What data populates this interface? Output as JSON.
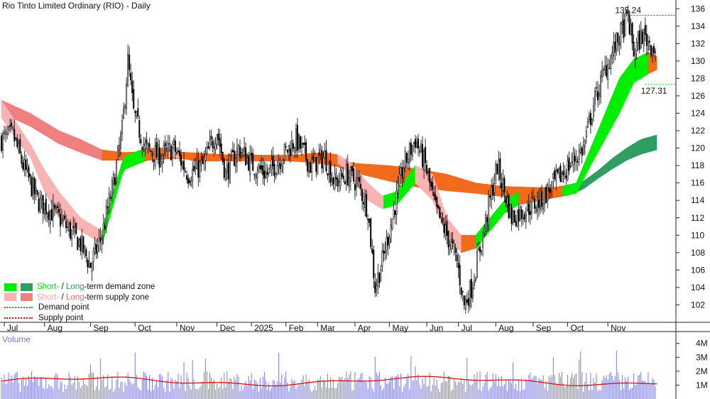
{
  "title": "Rio Tinto Limited Ordinary (RIO) - Daily",
  "volume_title": "Volume",
  "colors": {
    "short_demand": "#00ee00",
    "long_demand": "#2f9e62",
    "short_supply": "#f8b4b4",
    "long_supply": "#f08080",
    "orange_zone": "#f26b1d",
    "volume_bar": "#7b7bd6",
    "volume_ma": "#d81010",
    "demand_point": "#00cc00",
    "supply_point": "#d81010"
  },
  "legend": {
    "row1_pre": "Short-",
    "row1_sep": " / ",
    "row1_long": "Long",
    "row1_post": "-term demand zone",
    "row2_pre": "Short-",
    "row2_sep": " / ",
    "row2_long": "Long",
    "row2_post": "-term supply zone",
    "row3": "Demand point",
    "row4": "Supply point"
  },
  "chart_data": {
    "type": "candlestick",
    "price_axis": {
      "min": 100,
      "max": 137,
      "ticks": [
        102,
        104,
        106,
        108,
        110,
        112,
        114,
        116,
        118,
        120,
        122,
        124,
        126,
        128,
        130,
        132,
        134,
        136
      ]
    },
    "volume_axis": {
      "ticks": [
        "4M",
        "3M",
        "2M",
        "1M"
      ],
      "values": [
        4,
        3,
        2,
        1
      ],
      "max": 4.6
    },
    "months": [
      "Jul",
      "Aug",
      "Sep",
      "Oct",
      "Nov",
      "Dec",
      "2025",
      "Feb",
      "Mar",
      "Apr",
      "May",
      "Jun",
      "Jul",
      "Aug",
      "Sep",
      "Oct",
      "Nov"
    ],
    "annotations": {
      "supply_point": {
        "label": "135.24",
        "value": 135.24
      },
      "demand_point": {
        "label": "127.31",
        "value": 127.31
      }
    },
    "close_keypoints": [
      [
        0,
        121.0
      ],
      [
        8,
        121.5
      ],
      [
        15,
        118
      ],
      [
        25,
        114
      ],
      [
        40,
        112
      ],
      [
        55,
        109
      ],
      [
        62,
        106.5
      ],
      [
        70,
        110
      ],
      [
        78,
        116
      ],
      [
        84,
        122
      ],
      [
        88,
        130
      ],
      [
        92,
        124
      ],
      [
        100,
        120
      ],
      [
        110,
        119
      ],
      [
        120,
        120
      ],
      [
        130,
        117
      ],
      [
        140,
        118
      ],
      [
        150,
        122
      ],
      [
        156,
        117
      ],
      [
        165,
        120
      ],
      [
        175,
        118
      ],
      [
        185,
        117
      ],
      [
        195,
        119
      ],
      [
        205,
        121
      ],
      [
        215,
        118
      ],
      [
        225,
        119
      ],
      [
        232,
        116
      ],
      [
        240,
        117
      ],
      [
        248,
        116
      ],
      [
        255,
        113
      ],
      [
        260,
        104
      ],
      [
        265,
        107
      ],
      [
        272,
        112
      ],
      [
        280,
        118
      ],
      [
        288,
        121
      ],
      [
        295,
        118
      ],
      [
        302,
        113
      ],
      [
        310,
        110
      ],
      [
        317,
        107
      ],
      [
        322,
        102
      ],
      [
        327,
        104
      ],
      [
        335,
        110
      ],
      [
        345,
        118
      ],
      [
        355,
        112
      ],
      [
        365,
        113
      ],
      [
        375,
        114
      ],
      [
        385,
        116
      ],
      [
        395,
        118
      ],
      [
        405,
        120
      ],
      [
        412,
        125
      ],
      [
        420,
        129
      ],
      [
        428,
        132
      ],
      [
        436,
        135
      ],
      [
        440,
        131
      ],
      [
        446,
        133
      ],
      [
        452,
        132
      ],
      [
        456,
        131
      ]
    ],
    "short_zone": {
      "upper": [
        [
          0,
          125.5
        ],
        [
          10,
          123
        ],
        [
          20,
          120.5
        ],
        [
          30,
          117.5
        ],
        [
          40,
          115
        ],
        [
          55,
          112
        ],
        [
          70,
          110.5
        ],
        [
          85,
          119
        ],
        [
          100,
          120
        ],
        [
          115,
          120
        ],
        [
          125,
          119.4
        ],
        [
          135,
          119.3
        ],
        [
          150,
          119.2
        ],
        [
          165,
          119.3
        ],
        [
          180,
          119.2
        ],
        [
          195,
          119.2
        ],
        [
          205,
          119.2
        ],
        [
          215,
          119.4
        ],
        [
          225,
          119.5
        ],
        [
          235,
          119.2
        ],
        [
          245,
          118
        ],
        [
          255,
          116
        ],
        [
          265,
          114.5
        ],
        [
          275,
          115
        ],
        [
          288,
          118
        ],
        [
          300,
          117
        ],
        [
          310,
          112
        ],
        [
          320,
          110
        ],
        [
          330,
          110
        ],
        [
          340,
          112
        ],
        [
          350,
          114
        ],
        [
          360,
          115
        ],
        [
          375,
          115.5
        ],
        [
          390,
          115.5
        ],
        [
          400,
          116
        ],
        [
          410,
          120
        ],
        [
          420,
          124
        ],
        [
          430,
          128
        ],
        [
          440,
          130.2
        ],
        [
          450,
          131
        ],
        [
          456,
          130.5
        ]
      ],
      "lower": [
        [
          0,
          123.5
        ],
        [
          10,
          121
        ],
        [
          20,
          119
        ],
        [
          30,
          115
        ],
        [
          40,
          112
        ],
        [
          55,
          110.5
        ],
        [
          70,
          109
        ],
        [
          85,
          117.5
        ],
        [
          100,
          118.5
        ],
        [
          115,
          119
        ],
        [
          125,
          118.8
        ],
        [
          135,
          118.5
        ],
        [
          150,
          118.5
        ],
        [
          165,
          118.7
        ],
        [
          180,
          118.7
        ],
        [
          195,
          118.7
        ],
        [
          205,
          118.6
        ],
        [
          215,
          118.7
        ],
        [
          225,
          118.6
        ],
        [
          235,
          118.2
        ],
        [
          245,
          116.5
        ],
        [
          255,
          114
        ],
        [
          265,
          113
        ],
        [
          275,
          113.5
        ],
        [
          288,
          116
        ],
        [
          300,
          114
        ],
        [
          310,
          110
        ],
        [
          320,
          108
        ],
        [
          330,
          108.5
        ],
        [
          340,
          110.5
        ],
        [
          350,
          112.5
        ],
        [
          360,
          113.5
        ],
        [
          375,
          114
        ],
        [
          390,
          114.5
        ],
        [
          400,
          114.8
        ],
        [
          410,
          118
        ],
        [
          420,
          121
        ],
        [
          430,
          124
        ],
        [
          440,
          127.5
        ],
        [
          450,
          128.5
        ],
        [
          456,
          129
        ]
      ]
    },
    "long_zone": {
      "upper": [
        [
          0,
          125.5
        ],
        [
          20,
          124
        ],
        [
          40,
          122
        ],
        [
          55,
          121
        ],
        [
          70,
          119.8
        ],
        [
          85,
          119.5
        ],
        [
          100,
          119.6
        ],
        [
          120,
          119.6
        ],
        [
          140,
          119.4
        ],
        [
          160,
          119.2
        ],
        [
          180,
          119.1
        ],
        [
          200,
          119.0
        ],
        [
          220,
          118.8
        ],
        [
          235,
          118.5
        ],
        [
          250,
          118.2
        ],
        [
          270,
          118
        ],
        [
          290,
          117.6
        ],
        [
          310,
          117
        ],
        [
          330,
          116
        ],
        [
          350,
          115.6
        ],
        [
          370,
          115.5
        ],
        [
          385,
          115.5
        ],
        [
          395,
          115.8
        ],
        [
          405,
          116.2
        ],
        [
          415,
          117.4
        ],
        [
          425,
          118.8
        ],
        [
          435,
          120
        ],
        [
          445,
          121
        ],
        [
          456,
          121.5
        ]
      ],
      "lower": [
        [
          0,
          124
        ],
        [
          20,
          122.5
        ],
        [
          40,
          120.5
        ],
        [
          55,
          119.5
        ],
        [
          70,
          118.6
        ],
        [
          85,
          118.6
        ],
        [
          100,
          118.6
        ],
        [
          120,
          118.8
        ],
        [
          140,
          118.7
        ],
        [
          160,
          118.5
        ],
        [
          180,
          118.5
        ],
        [
          200,
          118.5
        ],
        [
          220,
          118.3
        ],
        [
          235,
          117.8
        ],
        [
          250,
          117.0
        ],
        [
          270,
          116.2
        ],
        [
          290,
          115.5
        ],
        [
          310,
          115.1
        ],
        [
          330,
          114.8
        ],
        [
          350,
          114.4
        ],
        [
          370,
          114.2
        ],
        [
          385,
          114.3
        ],
        [
          395,
          114.6
        ],
        [
          405,
          115.3
        ],
        [
          415,
          116.5
        ],
        [
          425,
          117.6
        ],
        [
          435,
          118.6
        ],
        [
          445,
          119.3
        ],
        [
          456,
          119.8
        ]
      ]
    },
    "volume_ma_level": 1.28
  }
}
